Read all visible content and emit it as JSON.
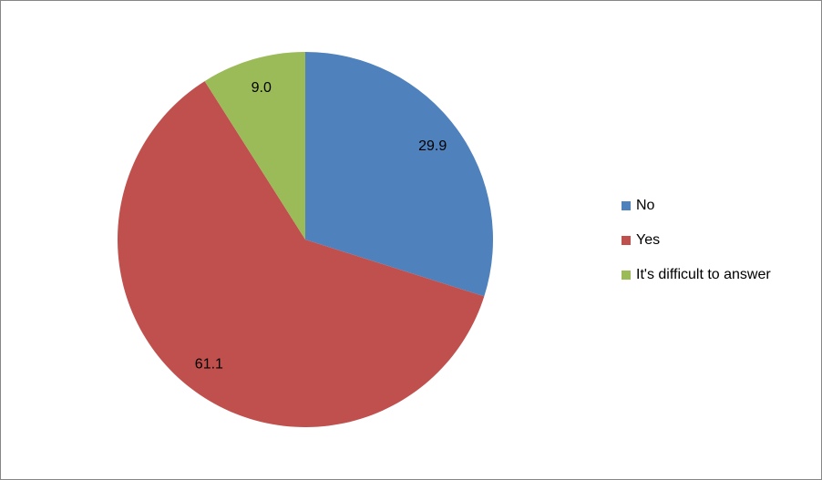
{
  "chart_data": {
    "type": "pie",
    "categories": [
      "No",
      "Yes",
      "It's difficult to answer"
    ],
    "values": [
      29.9,
      61.1,
      9.0
    ],
    "value_labels": [
      "29.9",
      "61.1",
      "9.0"
    ],
    "colors": [
      "#4f81bd",
      "#c0504d",
      "#9bbb59"
    ],
    "legend": "right"
  }
}
